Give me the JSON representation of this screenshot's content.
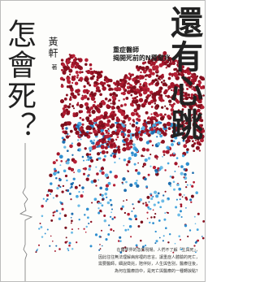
{
  "cover": {
    "title_right": "還有心跳",
    "title_left": "怎會死？",
    "author": "黃軒",
    "author_suffix": "著",
    "subtitle": [
      "重症醫師",
      "揭開死前的N種徵兆"
    ],
    "blurb": [
      "在醫學界的急救現場，人們不了解「生與死」，",
      "因此往往無法理解病房裡的忠言。讓重症人體驗的死亡，",
      "需要醫師，細說徵兆，陪伴好，人生與告別，醫療往後，",
      "為何在醫療前中，是死亡與醫療的一種轉捩點？"
    ]
  }
}
